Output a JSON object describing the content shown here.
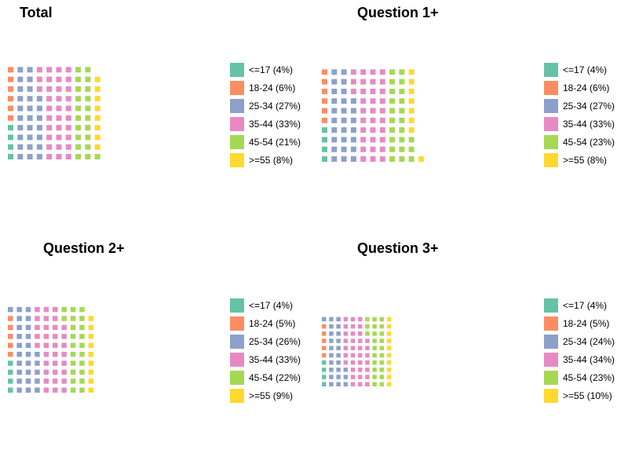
{
  "colors": {
    "<=17": "#66c2a5",
    "18-24": "#fc8d62",
    "25-34": "#8da0cb",
    "35-44": "#e78ac3",
    "45-54": "#a6d854",
    ">=55": "#ffd92f"
  },
  "chart_data": [
    {
      "type": "waffle",
      "title": "Total",
      "categories": [
        "<=17",
        "18-24",
        "25-34",
        "35-44",
        "45-54",
        ">=55"
      ],
      "values": [
        4,
        6,
        27,
        33,
        21,
        8
      ],
      "legend_labels": [
        "<=17 (4%)",
        "18-24 (6%)",
        "25-34 (27%)",
        "35-44 (33%)",
        "45-54 (21%)",
        ">=55 (8%)"
      ],
      "legend": "right"
    },
    {
      "type": "waffle",
      "title": "Question 1+",
      "categories": [
        "<=17",
        "18-24",
        "25-34",
        "35-44",
        "45-54",
        ">=55"
      ],
      "values": [
        4,
        6,
        27,
        33,
        23,
        8
      ],
      "legend_labels": [
        "<=17 (4%)",
        "18-24 (6%)",
        "25-34 (27%)",
        "35-44 (33%)",
        "45-54 (23%)",
        ">=55 (8%)"
      ],
      "legend": "right"
    },
    {
      "type": "waffle",
      "title": "Question 2+",
      "categories": [
        "<=17",
        "18-24",
        "25-34",
        "35-44",
        "45-54",
        ">=55"
      ],
      "values": [
        4,
        5,
        26,
        33,
        22,
        9
      ],
      "legend_labels": [
        "<=17 (4%)",
        "18-24 (5%)",
        "25-34 (26%)",
        "35-44 (33%)",
        "45-54 (22%)",
        ">=55 (9%)"
      ],
      "legend": "right"
    },
    {
      "type": "waffle",
      "title": "Question 3+",
      "categories": [
        "<=17",
        "18-24",
        "25-34",
        "35-44",
        "45-54",
        ">=55"
      ],
      "values": [
        4,
        5,
        24,
        34,
        23,
        10
      ],
      "legend_labels": [
        "<=17 (4%)",
        "18-24 (5%)",
        "25-34 (24%)",
        "35-44 (34%)",
        "45-54 (23%)",
        ">=55 (10%)"
      ],
      "legend": "right"
    }
  ]
}
